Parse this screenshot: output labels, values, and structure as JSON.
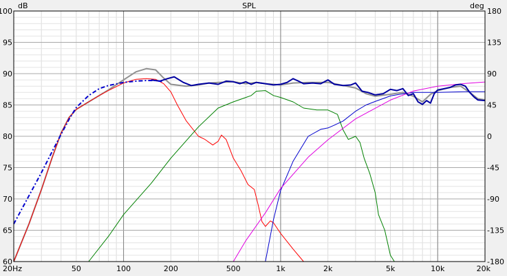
{
  "chart_data": {
    "type": "line",
    "title": "SPL",
    "ylabel": "dB",
    "y2label": "deg",
    "xscale": "log",
    "xlim": [
      20,
      20000
    ],
    "ylim": [
      60,
      100
    ],
    "y2lim": [
      -180,
      180
    ],
    "grid": true,
    "x_ticks": [
      {
        "value": 20,
        "label": "20Hz"
      },
      {
        "value": 50,
        "label": "50"
      },
      {
        "value": 100,
        "label": "100"
      },
      {
        "value": 200,
        "label": "200"
      },
      {
        "value": 500,
        "label": "500"
      },
      {
        "value": 1000,
        "label": "1k"
      },
      {
        "value": 2000,
        "label": "2k"
      },
      {
        "value": 5000,
        "label": "5k"
      },
      {
        "value": 10000,
        "label": "10k"
      },
      {
        "value": 20000,
        "label": "20k"
      }
    ],
    "y_ticks": [
      "100",
      "95",
      "90",
      "85",
      "80",
      "75",
      "70",
      "65",
      "60"
    ],
    "y2_ticks": [
      "180",
      "135",
      "90",
      "45",
      "0",
      "-45",
      "-90",
      "-135",
      "-180"
    ],
    "series": [
      {
        "color": "#909090",
        "axis": "left",
        "width": 2,
        "points": [
          [
            20,
            60
          ],
          [
            25,
            66
          ],
          [
            30,
            71.5
          ],
          [
            35,
            76.5
          ],
          [
            40,
            80.5
          ],
          [
            45,
            83
          ],
          [
            50,
            84.3
          ],
          [
            60,
            85.5
          ],
          [
            70,
            86.5
          ],
          [
            80,
            87.4
          ],
          [
            100,
            89
          ],
          [
            120,
            90.3
          ],
          [
            140,
            90.8
          ],
          [
            160,
            90.6
          ],
          [
            180,
            89.3
          ],
          [
            200,
            88.3
          ],
          [
            250,
            88
          ],
          [
            300,
            88.2
          ],
          [
            350,
            88.5
          ],
          [
            400,
            88.6
          ],
          [
            500,
            88.7
          ],
          [
            600,
            88.4
          ],
          [
            700,
            88.6
          ],
          [
            800,
            88.4
          ],
          [
            900,
            88.3
          ],
          [
            1000,
            88.2
          ],
          [
            1200,
            88.5
          ],
          [
            1500,
            88.6
          ],
          [
            2000,
            88.6
          ],
          [
            3000,
            87.7
          ],
          [
            3500,
            86.8
          ],
          [
            4000,
            86.4
          ],
          [
            5000,
            86.7
          ],
          [
            6000,
            87
          ],
          [
            7000,
            86.4
          ],
          [
            8000,
            85.5
          ],
          [
            9000,
            86.7
          ],
          [
            10000,
            87.3
          ],
          [
            12000,
            87.8
          ],
          [
            14000,
            88
          ],
          [
            16000,
            87
          ],
          [
            18000,
            86
          ],
          [
            20000,
            85.8
          ]
        ]
      },
      {
        "color": "#ff0000",
        "axis": "left",
        "width": 1,
        "points": [
          [
            20,
            60
          ],
          [
            25,
            66
          ],
          [
            30,
            71.5
          ],
          [
            35,
            76.5
          ],
          [
            40,
            80.5
          ],
          [
            45,
            83
          ],
          [
            50,
            84.3
          ],
          [
            60,
            85.5
          ],
          [
            70,
            86.5
          ],
          [
            80,
            87.3
          ],
          [
            100,
            88.5
          ],
          [
            120,
            89.1
          ],
          [
            140,
            89.2
          ],
          [
            160,
            89.1
          ],
          [
            180,
            88.4
          ],
          [
            200,
            87.1
          ],
          [
            220,
            85
          ],
          [
            250,
            82.5
          ],
          [
            300,
            80
          ],
          [
            330,
            79.5
          ],
          [
            370,
            78.6
          ],
          [
            400,
            79.2
          ],
          [
            420,
            80.2
          ],
          [
            450,
            79.5
          ],
          [
            500,
            76.5
          ],
          [
            560,
            74.5
          ],
          [
            620,
            72.3
          ],
          [
            680,
            71.5
          ],
          [
            720,
            69
          ],
          [
            760,
            66.4
          ],
          [
            800,
            65.6
          ],
          [
            860,
            66.5
          ],
          [
            900,
            66.2
          ],
          [
            1000,
            64.5
          ],
          [
            1200,
            62
          ],
          [
            1400,
            60
          ]
        ]
      },
      {
        "color": "#008000",
        "axis": "left",
        "width": 1,
        "points": [
          [
            60,
            60
          ],
          [
            80,
            64
          ],
          [
            100,
            67.5
          ],
          [
            150,
            72.5
          ],
          [
            200,
            76.5
          ],
          [
            300,
            81.5
          ],
          [
            400,
            84.5
          ],
          [
            500,
            85.5
          ],
          [
            600,
            86.2
          ],
          [
            650,
            86.5
          ],
          [
            700,
            87.2
          ],
          [
            800,
            87.3
          ],
          [
            900,
            86.5
          ],
          [
            1000,
            86.2
          ],
          [
            1200,
            85.5
          ],
          [
            1400,
            84.5
          ],
          [
            1700,
            84.2
          ],
          [
            2000,
            84.2
          ],
          [
            2300,
            83.5
          ],
          [
            2500,
            81
          ],
          [
            2700,
            79.5
          ],
          [
            3000,
            80
          ],
          [
            3200,
            79
          ],
          [
            3400,
            76.5
          ],
          [
            3700,
            74
          ],
          [
            4000,
            71
          ],
          [
            4200,
            67.5
          ],
          [
            4600,
            65
          ],
          [
            5000,
            61
          ],
          [
            5300,
            60
          ]
        ]
      },
      {
        "color": "#0000cd",
        "axis": "right",
        "width": 1,
        "points": [
          [
            800,
            -180
          ],
          [
            900,
            -120
          ],
          [
            1000,
            -78
          ],
          [
            1200,
            -36
          ],
          [
            1500,
            0
          ],
          [
            1800,
            10
          ],
          [
            2000,
            12
          ],
          [
            2200,
            16
          ],
          [
            2500,
            22
          ],
          [
            3000,
            36
          ],
          [
            3500,
            45
          ],
          [
            4000,
            50
          ],
          [
            5000,
            58
          ],
          [
            6000,
            61
          ],
          [
            7000,
            63
          ],
          [
            8000,
            63
          ],
          [
            10000,
            63
          ],
          [
            15000,
            64
          ],
          [
            20000,
            64
          ]
        ]
      },
      {
        "color": "#e000e0",
        "axis": "right",
        "width": 1,
        "points": [
          [
            500,
            -180
          ],
          [
            600,
            -150
          ],
          [
            800,
            -110
          ],
          [
            1000,
            -75
          ],
          [
            1500,
            -30
          ],
          [
            2000,
            -5
          ],
          [
            3000,
            25
          ],
          [
            5000,
            52
          ],
          [
            7000,
            65
          ],
          [
            10000,
            72
          ],
          [
            15000,
            76
          ],
          [
            20000,
            78
          ]
        ]
      },
      {
        "color": "#0000a0",
        "axis": "left",
        "width": 2,
        "points": [
          [
            150,
            89
          ],
          [
            170,
            88.8
          ],
          [
            190,
            89.2
          ],
          [
            210,
            89.5
          ],
          [
            240,
            88.6
          ],
          [
            270,
            88.1
          ],
          [
            300,
            88.3
          ],
          [
            350,
            88.5
          ],
          [
            400,
            88.3
          ],
          [
            450,
            88.8
          ],
          [
            500,
            88.7
          ],
          [
            550,
            88.4
          ],
          [
            600,
            88.7
          ],
          [
            650,
            88.3
          ],
          [
            700,
            88.6
          ],
          [
            800,
            88.4
          ],
          [
            900,
            88.2
          ],
          [
            1000,
            88.3
          ],
          [
            1100,
            88.6
          ],
          [
            1200,
            89.2
          ],
          [
            1300,
            88.8
          ],
          [
            1400,
            88.4
          ],
          [
            1600,
            88.5
          ],
          [
            1800,
            88.4
          ],
          [
            2000,
            89
          ],
          [
            2200,
            88.3
          ],
          [
            2500,
            88.1
          ],
          [
            2800,
            88.2
          ],
          [
            3000,
            88.5
          ],
          [
            3300,
            87.2
          ],
          [
            3600,
            87
          ],
          [
            4000,
            86.6
          ],
          [
            4500,
            86.8
          ],
          [
            5000,
            87.5
          ],
          [
            5500,
            87.3
          ],
          [
            6000,
            87.6
          ],
          [
            6500,
            86.5
          ],
          [
            7000,
            86.8
          ],
          [
            7500,
            85.5
          ],
          [
            8000,
            85.1
          ],
          [
            8500,
            85.7
          ],
          [
            9000,
            85.3
          ],
          [
            9500,
            86.8
          ],
          [
            10000,
            87.4
          ],
          [
            11000,
            87.6
          ],
          [
            12000,
            87.8
          ],
          [
            13000,
            88.2
          ],
          [
            14000,
            88.3
          ],
          [
            15000,
            88
          ],
          [
            16000,
            87
          ],
          [
            17000,
            86.3
          ],
          [
            18000,
            85.8
          ],
          [
            20000,
            85.7
          ]
        ]
      },
      {
        "color": "#0000cd",
        "axis": "left",
        "width": 2,
        "dash": "6,3,2,3",
        "points": [
          [
            20,
            66
          ],
          [
            25,
            70.5
          ],
          [
            30,
            74.2
          ],
          [
            35,
            77.5
          ],
          [
            40,
            80.3
          ],
          [
            45,
            82.7
          ],
          [
            50,
            84.6
          ],
          [
            60,
            86.5
          ],
          [
            70,
            87.6
          ],
          [
            80,
            88.1
          ],
          [
            100,
            88.6
          ],
          [
            120,
            88.8
          ],
          [
            140,
            88.9
          ],
          [
            160,
            88.9
          ],
          [
            180,
            88.7
          ]
        ]
      }
    ]
  }
}
